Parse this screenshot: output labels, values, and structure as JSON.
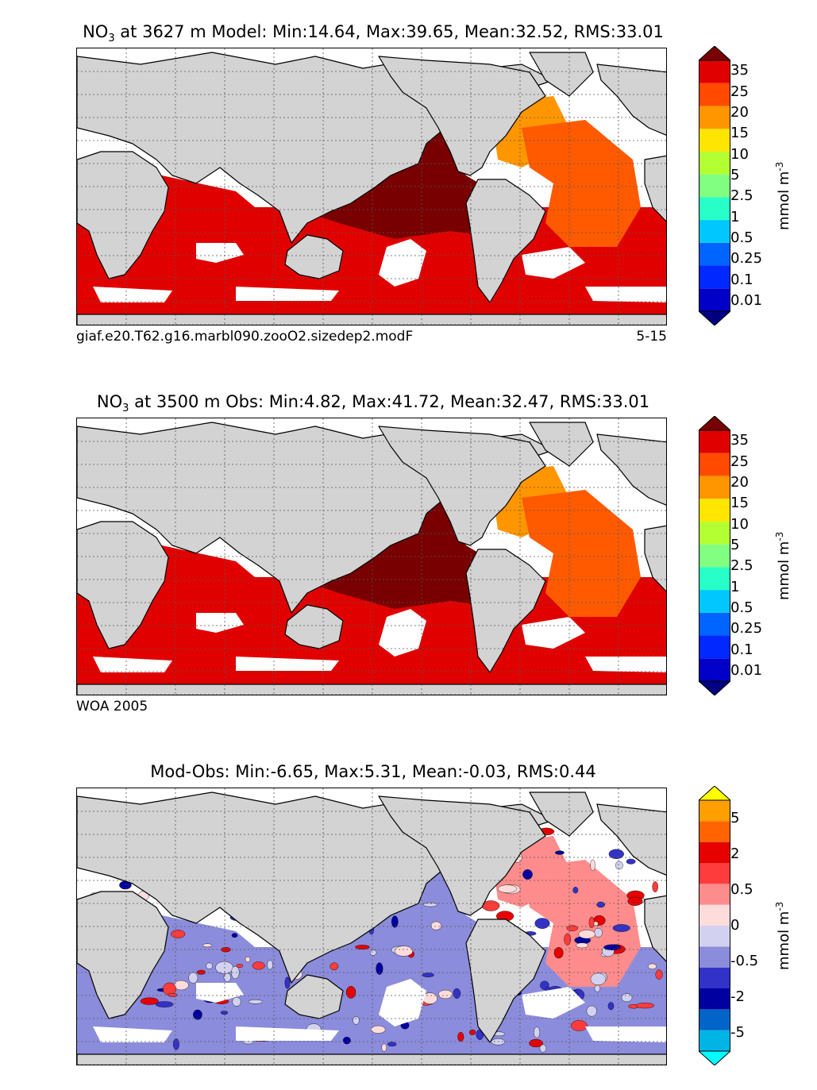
{
  "panels": [
    {
      "title_prefix": "NO",
      "title_sub": "3",
      "title_rest": " at 3627 m Model: Min:14.64, Max:39.65, Mean:32.52, RMS:33.01",
      "caption_left": "giaf.e20.T62.g16.marbl090.zooO2.sizedep2.modF",
      "caption_right": "5-15",
      "colorbar": {
        "labels": [
          "35",
          "25",
          "20",
          "15",
          "10",
          "5",
          "2.5",
          "1",
          "0.5",
          "0.25",
          "0.1",
          "0.01"
        ],
        "colors": [
          "#000080",
          "#0000c8",
          "#0028ff",
          "#0064ff",
          "#00c8ff",
          "#28ffc8",
          "#80ff80",
          "#b4ff32",
          "#ffe600",
          "#ff9600",
          "#ff4a00",
          "#e00000",
          "#780000"
        ],
        "unit": "mmol m",
        "unit_sup": "-3"
      },
      "fields": {
        "pacific": "#780000",
        "atlantic": "#ff5a00",
        "atlantic_north": "#ff9600",
        "southern": "#e00000"
      }
    },
    {
      "title_prefix": "NO",
      "title_sub": "3",
      "title_rest": " at 3500 m Obs: Min:4.82, Max:41.72, Mean:32.47, RMS:33.01",
      "caption_left": "WOA 2005",
      "caption_right": "",
      "colorbar": {
        "labels": [
          "35",
          "25",
          "20",
          "15",
          "10",
          "5",
          "2.5",
          "1",
          "0.5",
          "0.25",
          "0.1",
          "0.01"
        ],
        "colors": [
          "#000080",
          "#0000c8",
          "#0028ff",
          "#0064ff",
          "#00c8ff",
          "#28ffc8",
          "#80ff80",
          "#b4ff32",
          "#ffe600",
          "#ff9600",
          "#ff4a00",
          "#e00000",
          "#780000"
        ],
        "unit": "mmol m",
        "unit_sup": "-3"
      },
      "fields": {
        "pacific": "#780000",
        "atlantic": "#ff5a00",
        "atlantic_north": "#ff9600",
        "southern": "#e00000"
      }
    },
    {
      "title_prefix": "",
      "title_sub": "",
      "title_rest": "Mod-Obs: Min:-6.65, Max:5.31, Mean:-0.03, RMS:0.44",
      "caption_left": "",
      "caption_right": "",
      "colorbar": {
        "labels": [
          "5",
          "2",
          "0.5",
          "0",
          "-0.5",
          "-2",
          "-5"
        ],
        "colors": [
          "#00ffff",
          "#00b4e6",
          "#0064c8",
          "#0000a0",
          "#3232c8",
          "#8c8cdc",
          "#d2d2f0",
          "#ffdcdc",
          "#ff8c8c",
          "#ff3c3c",
          "#e60000",
          "#ff6400",
          "#ffa000",
          "#ffff00"
        ],
        "unit": "mmol m",
        "unit_sup": "-3"
      },
      "fields": {
        "pacific": "#8c8cdc",
        "atlantic": "#ff8c8c",
        "atlantic_north": "#ff8c8c",
        "southern": "#8c8cdc"
      }
    }
  ]
}
